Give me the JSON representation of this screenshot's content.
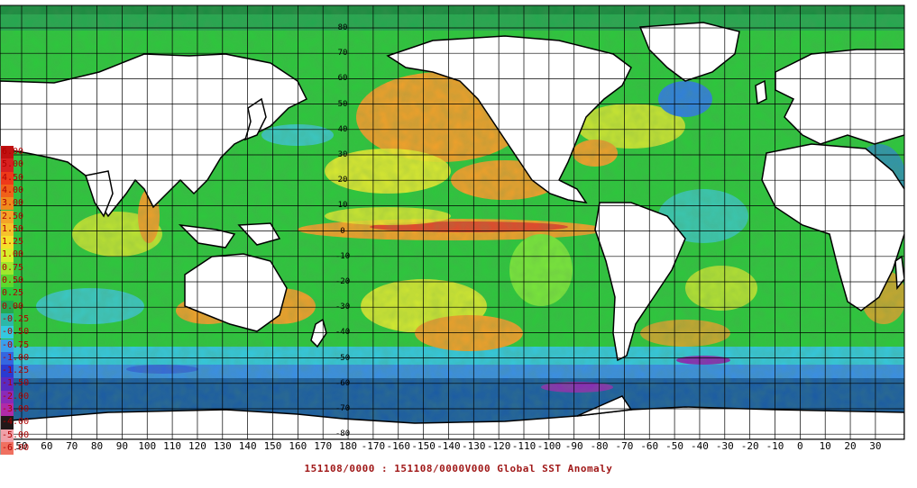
{
  "caption": "151108/0000 : 151108/0000V000 Global SST Anomaly",
  "colors": {
    "ocean_cold_deep": "#1a5aa6",
    "ocean_blue": "#2f7fe0",
    "ocean_cyan": "#3ec8e6",
    "ocean_teal": "#22b48a",
    "ocean_green": "#2cc83c",
    "ocean_lime": "#7ae83a",
    "ocean_yellow": "#f2ee2e",
    "ocean_orange": "#f2a02a",
    "ocean_red": "#e8462a",
    "land": "#ffffff",
    "grid": "#000000",
    "text_red": "#a01818"
  },
  "legend": {
    "entries": [
      {
        "label": "6.00",
        "color": "#c01010"
      },
      {
        "label": "5.00",
        "color": "#d82020"
      },
      {
        "label": "4.50",
        "color": "#ee3a1a"
      },
      {
        "label": "4.00",
        "color": "#f0601a"
      },
      {
        "label": "3.00",
        "color": "#f08a1c"
      },
      {
        "label": "2.50",
        "color": "#f4a428"
      },
      {
        "label": "1.50",
        "color": "#f6c22c"
      },
      {
        "label": "1.25",
        "color": "#f6e02a"
      },
      {
        "label": "1.00",
        "color": "#d8ee2c"
      },
      {
        "label": "0.75",
        "color": "#9ee82e"
      },
      {
        "label": "0.50",
        "color": "#5cd82e"
      },
      {
        "label": "0.25",
        "color": "#2cc83a"
      },
      {
        "label": "0.00",
        "color": "#24a850"
      },
      {
        "label": "-0.25",
        "color": "#2cb8a8"
      },
      {
        "label": "-0.50",
        "color": "#34c8e0"
      },
      {
        "label": "-0.75",
        "color": "#3aa0ec"
      },
      {
        "label": "-1.00",
        "color": "#3466e0"
      },
      {
        "label": "-1.25",
        "color": "#2a3ad0"
      },
      {
        "label": "-1.50",
        "color": "#5a2ac0"
      },
      {
        "label": "-2.00",
        "color": "#8a2ab8"
      },
      {
        "label": "-3.00",
        "color": "#b02aa8"
      },
      {
        "label": "-4.00",
        "color": "#201818"
      },
      {
        "label": "-5.00",
        "color": "#f0a0a8"
      },
      {
        "label": "-6.00",
        "color": "#f07060"
      }
    ]
  },
  "lon_ticks": [
    "50",
    "60",
    "70",
    "80",
    "90",
    "100",
    "110",
    "120",
    "130",
    "140",
    "150",
    "160",
    "170",
    "180",
    "-170",
    "-160",
    "-150",
    "-140",
    "-130",
    "-120",
    "-110",
    "-100",
    "-90",
    "-80",
    "-70",
    "-60",
    "-50",
    "-40",
    "-30",
    "-20",
    "-10",
    "0",
    "10",
    "20",
    "30"
  ],
  "lat_ticks": [
    "80",
    "70",
    "60",
    "50",
    "40",
    "30",
    "20",
    "10",
    "0",
    "-10",
    "-20",
    "-30",
    "-40",
    "-50",
    "-60",
    "-70",
    "-80"
  ]
}
